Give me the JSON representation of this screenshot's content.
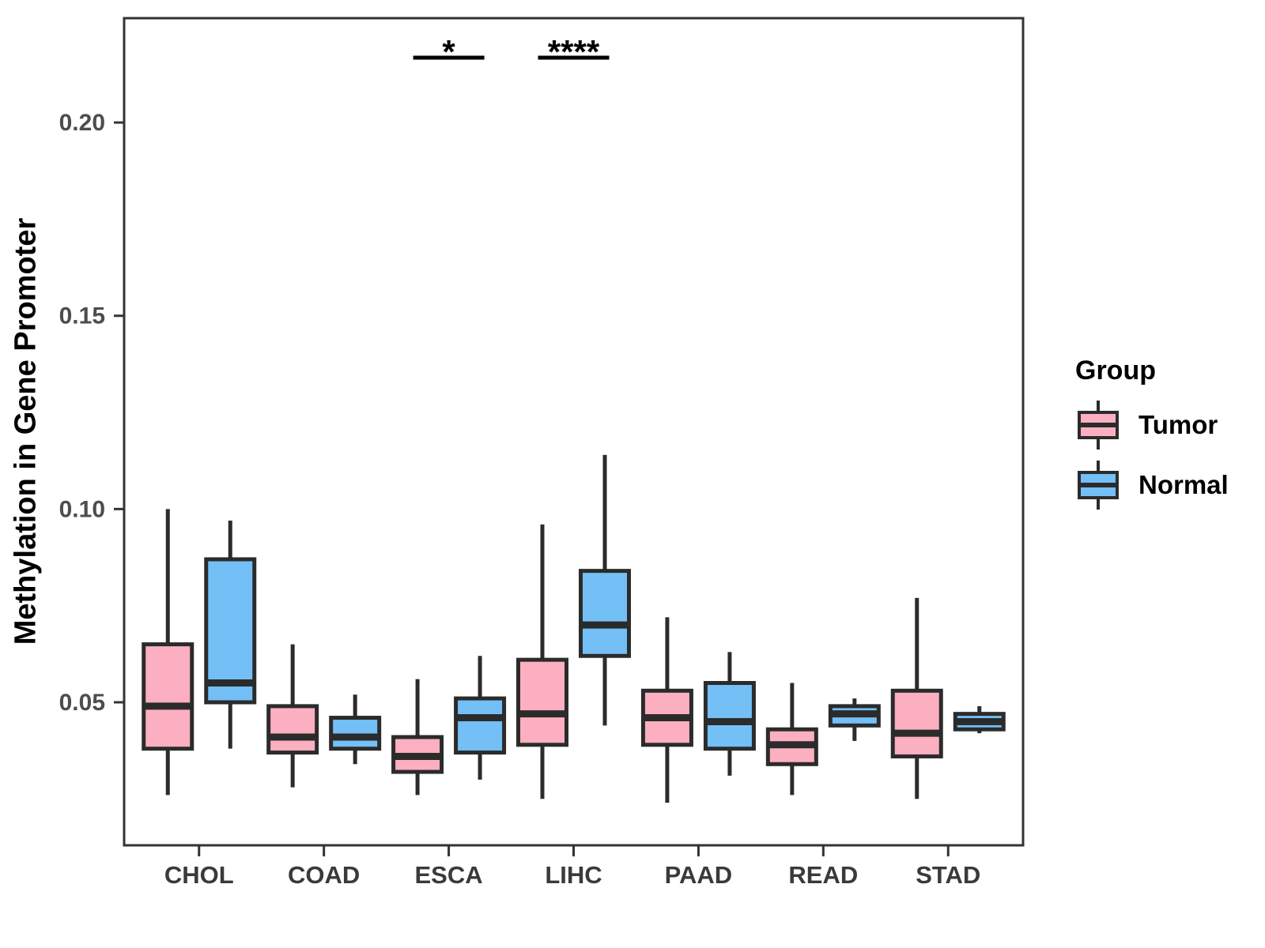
{
  "legend": {
    "title": "Group",
    "items": [
      {
        "label": "Tumor",
        "color": "#FCAFC0"
      },
      {
        "label": "Normal",
        "color": "#73BFF6"
      }
    ]
  },
  "chart_data": {
    "type": "boxplot",
    "title": "",
    "xlabel": "",
    "ylabel": "Methylation in Gene Promoter",
    "categories": [
      "CHOL",
      "COAD",
      "ESCA",
      "LIHC",
      "PAAD",
      "READ",
      "STAD"
    ],
    "ylim": [
      0.013,
      0.227
    ],
    "yticks": [
      0.05,
      0.1,
      0.15,
      0.2
    ],
    "grid": false,
    "legend_position": "right",
    "series": [
      {
        "name": "Tumor",
        "color": "#FCAFC0",
        "boxes": [
          {
            "min": 0.026,
            "q1": 0.038,
            "median": 0.049,
            "q3": 0.065,
            "max": 0.1
          },
          {
            "min": 0.028,
            "q1": 0.037,
            "median": 0.041,
            "q3": 0.049,
            "max": 0.065
          },
          {
            "min": 0.026,
            "q1": 0.032,
            "median": 0.036,
            "q3": 0.041,
            "max": 0.056
          },
          {
            "min": 0.025,
            "q1": 0.039,
            "median": 0.047,
            "q3": 0.061,
            "max": 0.096
          },
          {
            "min": 0.024,
            "q1": 0.039,
            "median": 0.046,
            "q3": 0.053,
            "max": 0.072
          },
          {
            "min": 0.026,
            "q1": 0.034,
            "median": 0.039,
            "q3": 0.043,
            "max": 0.055
          },
          {
            "min": 0.025,
            "q1": 0.036,
            "median": 0.042,
            "q3": 0.053,
            "max": 0.077
          }
        ]
      },
      {
        "name": "Normal",
        "color": "#73BFF6",
        "boxes": [
          {
            "min": 0.038,
            "q1": 0.05,
            "median": 0.055,
            "q3": 0.087,
            "max": 0.097
          },
          {
            "min": 0.034,
            "q1": 0.038,
            "median": 0.041,
            "q3": 0.046,
            "max": 0.052
          },
          {
            "min": 0.03,
            "q1": 0.037,
            "median": 0.046,
            "q3": 0.051,
            "max": 0.062
          },
          {
            "min": 0.044,
            "q1": 0.062,
            "median": 0.07,
            "q3": 0.084,
            "max": 0.114
          },
          {
            "min": 0.031,
            "q1": 0.038,
            "median": 0.045,
            "q3": 0.055,
            "max": 0.063
          },
          {
            "min": 0.04,
            "q1": 0.044,
            "median": 0.047,
            "q3": 0.049,
            "max": 0.051
          },
          {
            "min": 0.042,
            "q1": 0.043,
            "median": 0.045,
            "q3": 0.047,
            "max": 0.049
          }
        ]
      }
    ],
    "annotations": [
      {
        "category": "ESCA",
        "label": "*"
      },
      {
        "category": "LIHC",
        "label": "****"
      }
    ],
    "colors": {
      "box_line": "#2B2B2B",
      "frame": "#333333",
      "y_tick_label": "#4D4D4D",
      "x_tick_label": "#3A3A3A",
      "annotation": "#000000"
    }
  }
}
